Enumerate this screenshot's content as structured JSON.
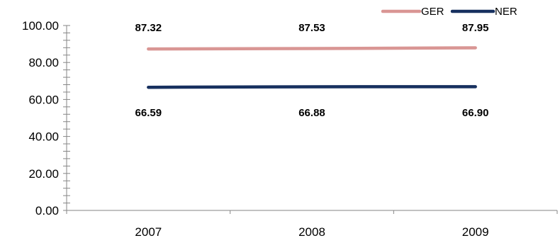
{
  "chart_data": {
    "type": "line",
    "title": "",
    "xlabel": "",
    "ylabel": "",
    "categories": [
      "2007",
      "2008",
      "2009"
    ],
    "ylim": [
      0,
      100
    ],
    "y_ticks": [
      "0.00",
      "20.00",
      "40.00",
      "60.00",
      "80.00",
      "100.00"
    ],
    "grid": false,
    "legend_position": "top-right",
    "series": [
      {
        "name": "GER",
        "values": [
          87.32,
          87.53,
          87.95
        ],
        "labels": [
          "87.32",
          "87.53",
          "87.95"
        ],
        "color": "#d99694",
        "label_position": "above"
      },
      {
        "name": "NER",
        "values": [
          66.59,
          66.88,
          66.9
        ],
        "labels": [
          "66.59",
          "66.88",
          "66.90"
        ],
        "color": "#17305f",
        "label_position": "below"
      }
    ]
  }
}
